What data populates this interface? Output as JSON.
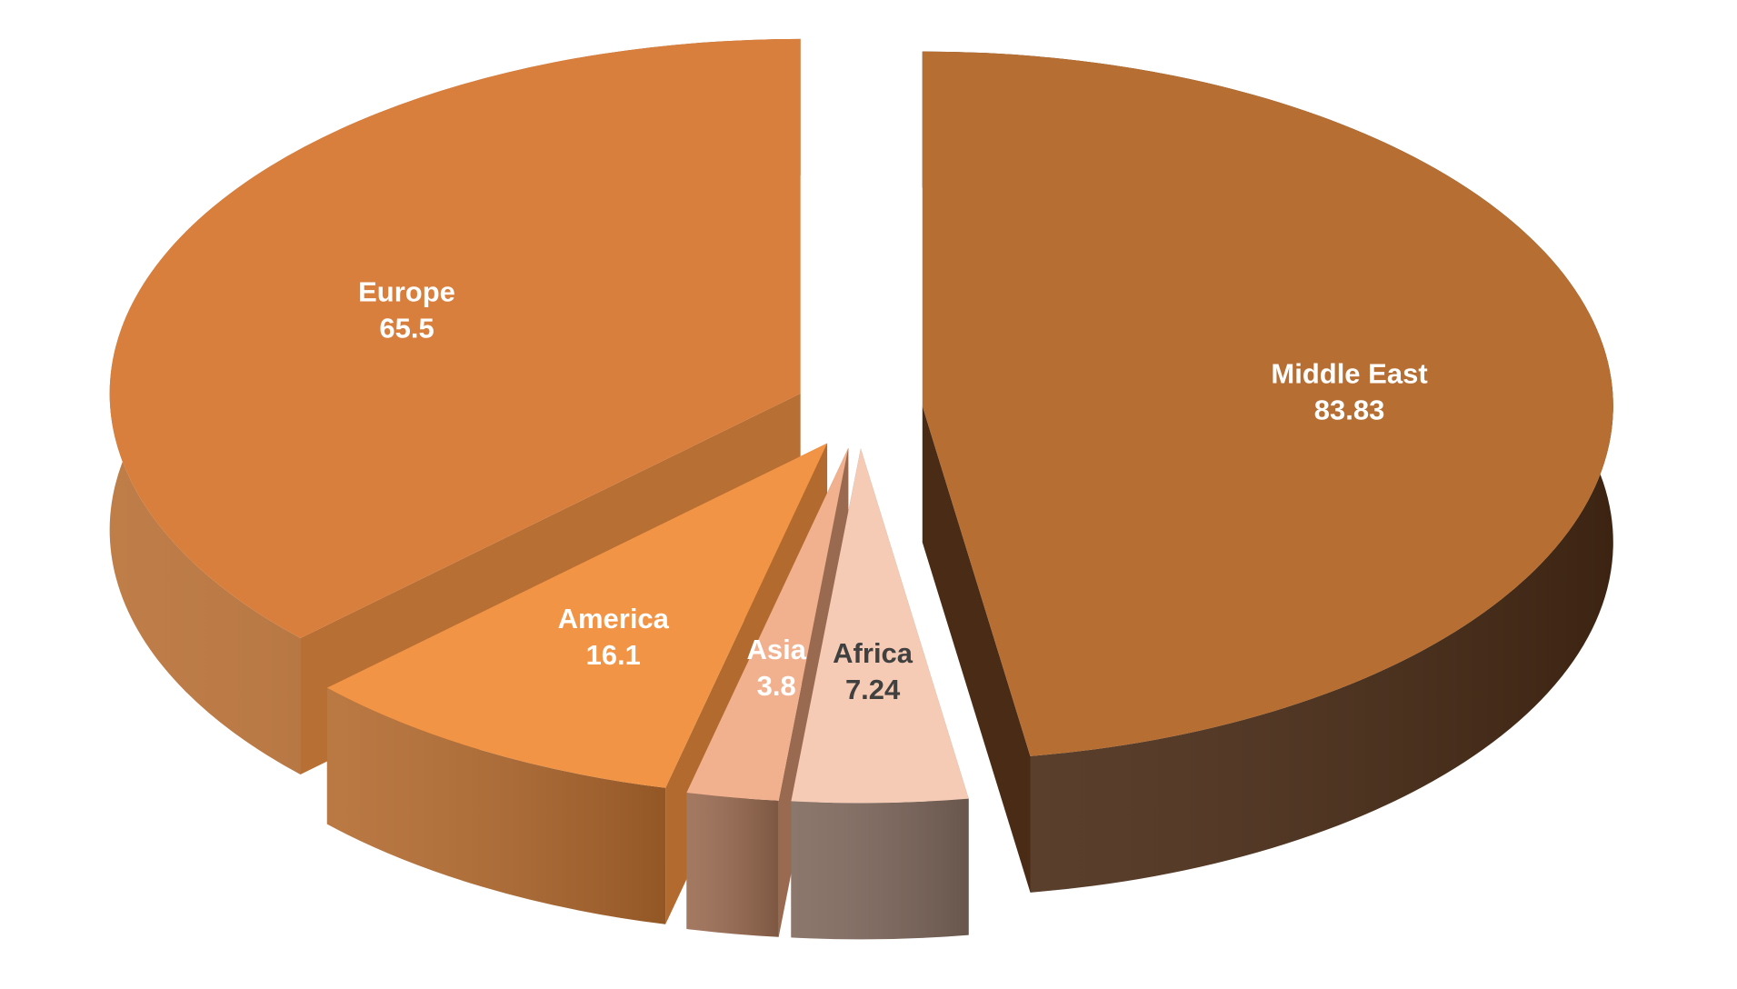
{
  "chart_data": {
    "type": "pie",
    "variant": "3d-exploded",
    "slices": [
      {
        "label": "Middle East",
        "value": 83.83,
        "color": "#b76e32",
        "side_color": "#4a2c16",
        "label_color": "#ffffff"
      },
      {
        "label": "Africa",
        "value": 7.24,
        "color": "#f6cbb5",
        "side_color": "#7f685c",
        "label_color": "#404040"
      },
      {
        "label": "Asia",
        "value": 3.8,
        "color": "#f2b18e",
        "side_color": "#996a50",
        "label_color": "#ffffff"
      },
      {
        "label": "America",
        "value": 16.1,
        "color": "#f29446",
        "side_color": "#b36a2e",
        "label_color": "#ffffff"
      },
      {
        "label": "Europe",
        "value": 65.5,
        "color": "#d97f3d",
        "side_color": "#b86f34",
        "label_color": "#ffffff"
      }
    ],
    "start_angle_deg": 0,
    "direction": "clockwise",
    "data_labels": "category-and-value",
    "legend": "none"
  }
}
